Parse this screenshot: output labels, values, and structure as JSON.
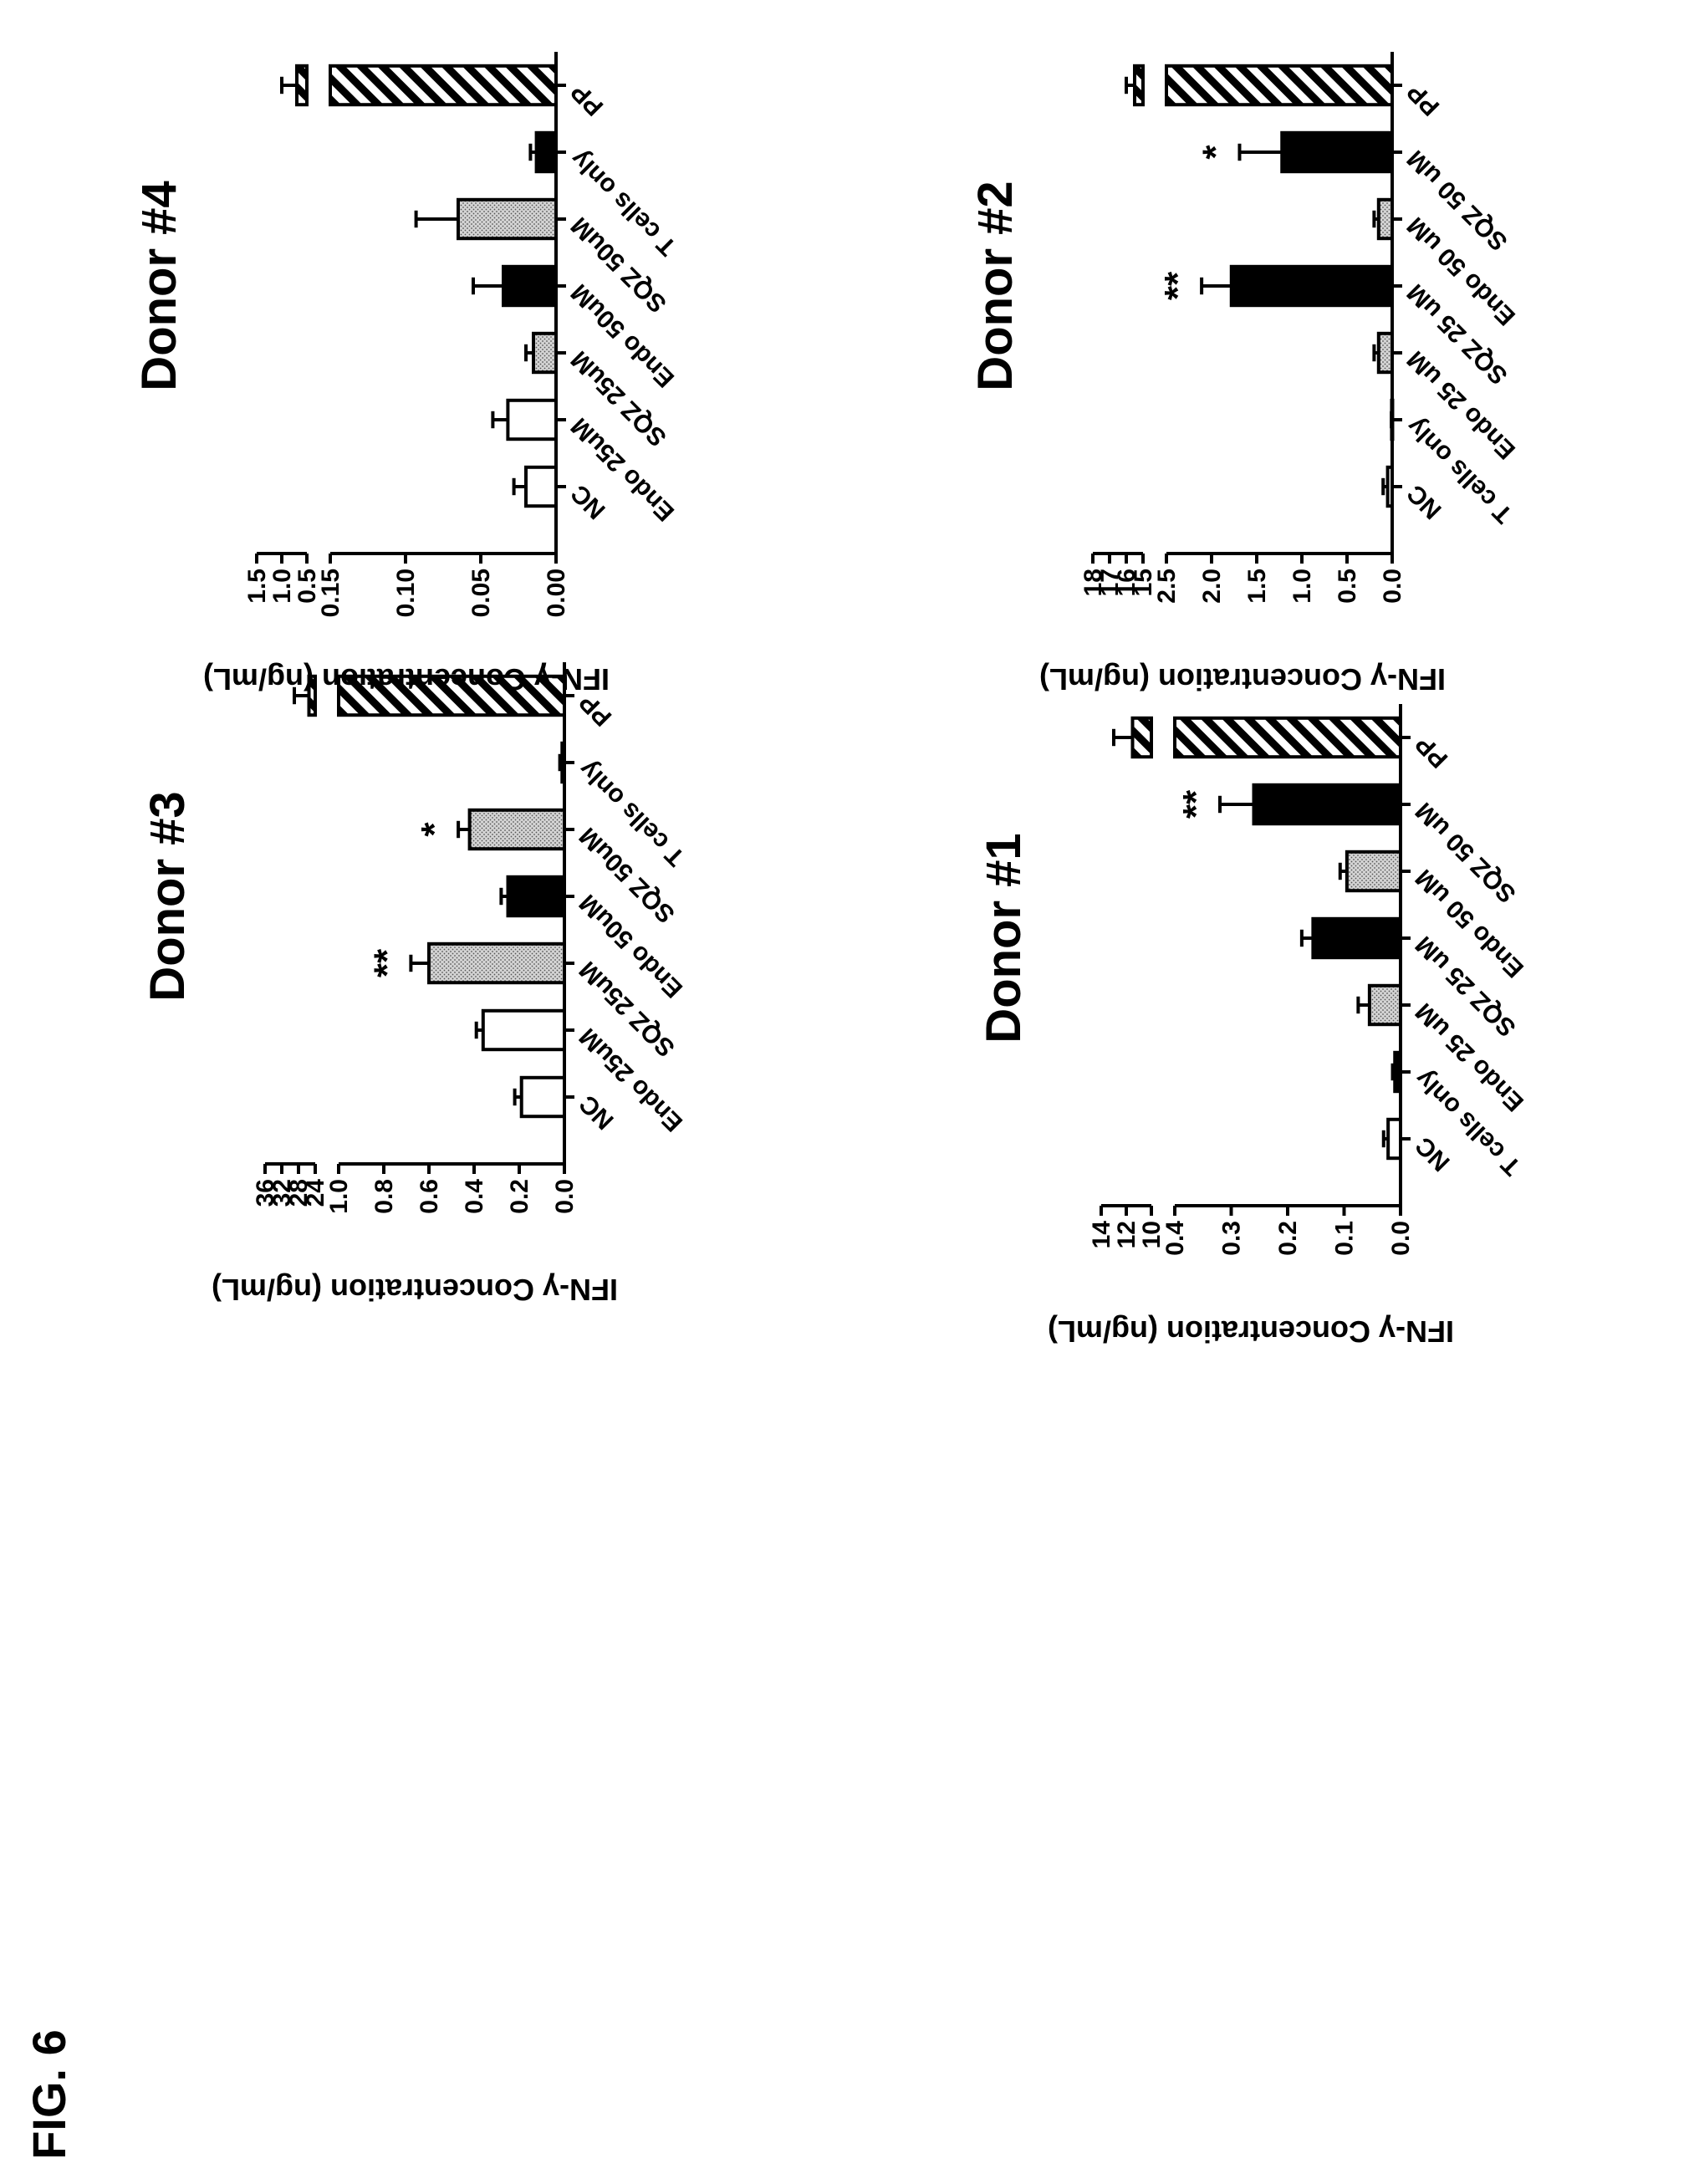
{
  "figure_label": "FIG. 6",
  "chart_data": [
    {
      "type": "bar",
      "title": "Donor #1",
      "ylabel": "IFN-γ Concentration (ng/mL)",
      "categories": [
        "NC",
        "T cells only",
        "Endo 25 uM",
        "SQZ 25 uM",
        "Endo 50 uM",
        "SQZ 50 uM",
        "PP"
      ],
      "values": [
        0.022,
        0.01,
        0.055,
        0.155,
        0.095,
        0.26,
        11.5
      ],
      "errors": [
        0.008,
        0.004,
        0.02,
        0.02,
        0.012,
        0.06,
        1.5
      ],
      "fills": [
        "white",
        "black",
        "dots",
        "black",
        "dots",
        "black",
        "hatch"
      ],
      "significance": [
        "",
        "",
        "",
        "",
        "",
        "**",
        ""
      ],
      "ylim": [
        0,
        14
      ],
      "axis_break": {
        "lower": [
          0,
          0.4
        ],
        "upper": [
          10,
          14
        ]
      },
      "lower_ticks": [
        "0.0",
        "0.1",
        "0.2",
        "0.3",
        "0.4"
      ],
      "upper_ticks": [
        "10",
        "12",
        "14"
      ]
    },
    {
      "type": "bar",
      "title": "Donor #2",
      "ylabel": "IFN-γ Concentration (ng/mL)",
      "categories": [
        "NC",
        "T cells only",
        "Endo 25 uM",
        "SQZ 25 uM",
        "Endo 50 uM",
        "SQZ 50 uM",
        "PP"
      ],
      "values": [
        0.05,
        0.005,
        0.15,
        1.78,
        0.15,
        1.22,
        15.5
      ],
      "errors": [
        0.05,
        0.003,
        0.05,
        0.33,
        0.05,
        0.47,
        0.5
      ],
      "fills": [
        "white",
        "black",
        "dots",
        "black",
        "dots",
        "black",
        "hatch"
      ],
      "significance": [
        "",
        "",
        "",
        "**",
        "",
        "*",
        ""
      ],
      "ylim": [
        0,
        18
      ],
      "axis_break": {
        "lower": [
          0,
          2.5
        ],
        "upper": [
          15,
          18
        ]
      },
      "lower_ticks": [
        "0.0",
        "0.5",
        "1.0",
        "1.5",
        "2.0",
        "2.5"
      ],
      "upper_ticks": [
        "15",
        "16",
        "17",
        "18"
      ]
    },
    {
      "type": "bar",
      "title": "Donor #3",
      "ylabel": "IFN-γ Concentration (ng/mL)",
      "categories": [
        "NC",
        "Endo 25uM",
        "SQZ 25uM",
        "Endo 50uM",
        "SQZ 50uM",
        "T cells only",
        "PP"
      ],
      "values": [
        0.19,
        0.36,
        0.6,
        0.25,
        0.42,
        0.01,
        25.5
      ],
      "errors": [
        0.03,
        0.03,
        0.08,
        0.03,
        0.05,
        0.01,
        3.5
      ],
      "fills": [
        "white",
        "white",
        "dots",
        "black",
        "dots",
        "black",
        "hatch"
      ],
      "significance": [
        "",
        "",
        "**",
        "",
        "*",
        "",
        ""
      ],
      "ylim": [
        0,
        36
      ],
      "axis_break": {
        "lower": [
          0,
          1.0
        ],
        "upper": [
          24,
          36
        ]
      },
      "lower_ticks": [
        "0.0",
        "0.2",
        "0.4",
        "0.6",
        "0.8",
        "1.0"
      ],
      "upper_ticks": [
        "24",
        "28",
        "32",
        "36"
      ]
    },
    {
      "type": "bar",
      "title": "Donor #4",
      "ylabel": "IFN-γ Concentration (ng/mL)",
      "categories": [
        "NC",
        "Endo 25uM",
        "SQZ 25uM",
        "Endo 50uM",
        "SQZ 50uM",
        "T cells only",
        "PP"
      ],
      "values": [
        0.02,
        0.032,
        0.015,
        0.035,
        0.065,
        0.013,
        0.7
      ],
      "errors": [
        0.008,
        0.01,
        0.005,
        0.02,
        0.028,
        0.004,
        0.3
      ],
      "fills": [
        "white",
        "white",
        "dots",
        "black",
        "dots",
        "black",
        "hatch"
      ],
      "significance": [
        "",
        "",
        "",
        "",
        "",
        "",
        ""
      ],
      "ylim": [
        0,
        1.5
      ],
      "axis_break": {
        "lower": [
          0,
          0.15
        ],
        "upper": [
          0.5,
          1.5
        ]
      },
      "lower_ticks": [
        "0.00",
        "0.05",
        "0.10",
        "0.15"
      ],
      "upper_ticks": [
        "0.5",
        "1.0",
        "1.5"
      ]
    }
  ]
}
